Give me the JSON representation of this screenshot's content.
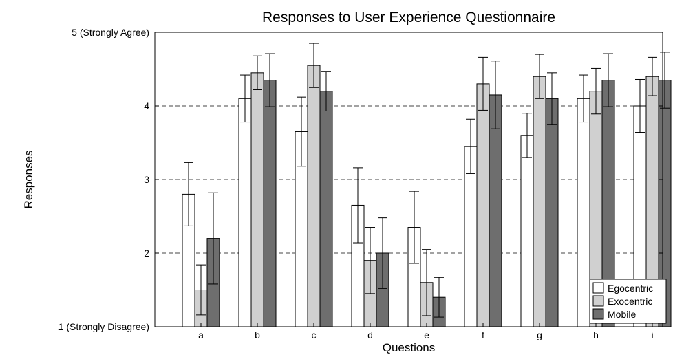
{
  "chart_data": {
    "type": "bar",
    "title": "Responses to User Experience Questionnaire",
    "xlabel": "Questions",
    "ylabel": "Responses",
    "categories": [
      "a",
      "b",
      "c",
      "d",
      "e",
      "f",
      "g",
      "h",
      "i"
    ],
    "ylim": [
      1,
      5
    ],
    "ytick_labels": [
      "1 (Strongly Disagree)",
      "2",
      "3",
      "4",
      "5 (Strongly Agree)"
    ],
    "grid": "horizontal dashed",
    "legend_position": "bottom-right",
    "series": [
      {
        "name": "Egocentric",
        "color": "#ffffff",
        "values": [
          2.8,
          4.1,
          3.65,
          2.65,
          2.35,
          3.45,
          3.6,
          4.1,
          4.0
        ],
        "error": [
          0.43,
          0.32,
          0.47,
          0.51,
          0.49,
          0.37,
          0.3,
          0.32,
          0.36
        ]
      },
      {
        "name": "Exocentric",
        "color": "#d0d0d0",
        "values": [
          1.5,
          4.45,
          4.55,
          1.9,
          1.6,
          4.3,
          4.4,
          4.2,
          4.4
        ],
        "error": [
          0.34,
          0.23,
          0.3,
          0.45,
          0.45,
          0.36,
          0.3,
          0.31,
          0.26
        ]
      },
      {
        "name": "Mobile",
        "color": "#6e6e6e",
        "values": [
          2.2,
          4.35,
          4.2,
          2.0,
          1.4,
          4.15,
          4.1,
          4.35,
          4.35
        ],
        "error": [
          0.62,
          0.36,
          0.27,
          0.48,
          0.27,
          0.46,
          0.35,
          0.36,
          0.38
        ]
      }
    ]
  }
}
